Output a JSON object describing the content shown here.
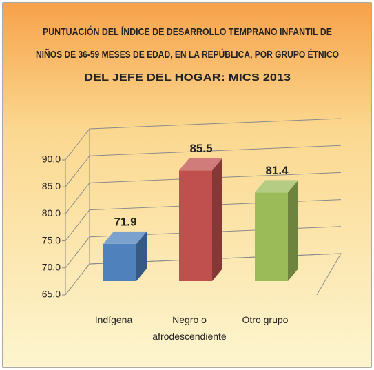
{
  "chart_data": {
    "type": "bar3d",
    "title": [
      "PUNTUACIÓN DEL ÍNDICE DE DESARROLLO TEMPRANO INFANTIL DE",
      "NIÑOS DE 36-59 MESES DE EDAD, EN LA REPÚBLICA, POR GRUPO ÉTNICO",
      "DEL JEFE DEL HOGAR: MICS 2013"
    ],
    "categories": [
      "Indígena",
      "Negro o afrodescendiente",
      "Otro grupo"
    ],
    "values": [
      71.9,
      85.5,
      81.4
    ],
    "colors": [
      "#4f81bd",
      "#c0504d",
      "#9bbb59"
    ],
    "ylim": [
      65,
      90
    ],
    "yticks": [
      {
        "value": 65,
        "label": "65.0"
      },
      {
        "value": 70,
        "label": "70.0"
      },
      {
        "value": 75,
        "label": "75.0"
      },
      {
        "value": 80,
        "label": "80.0"
      },
      {
        "value": 85,
        "label": "85.0"
      },
      {
        "value": 90,
        "label": "90.0"
      }
    ],
    "grid": true
  }
}
